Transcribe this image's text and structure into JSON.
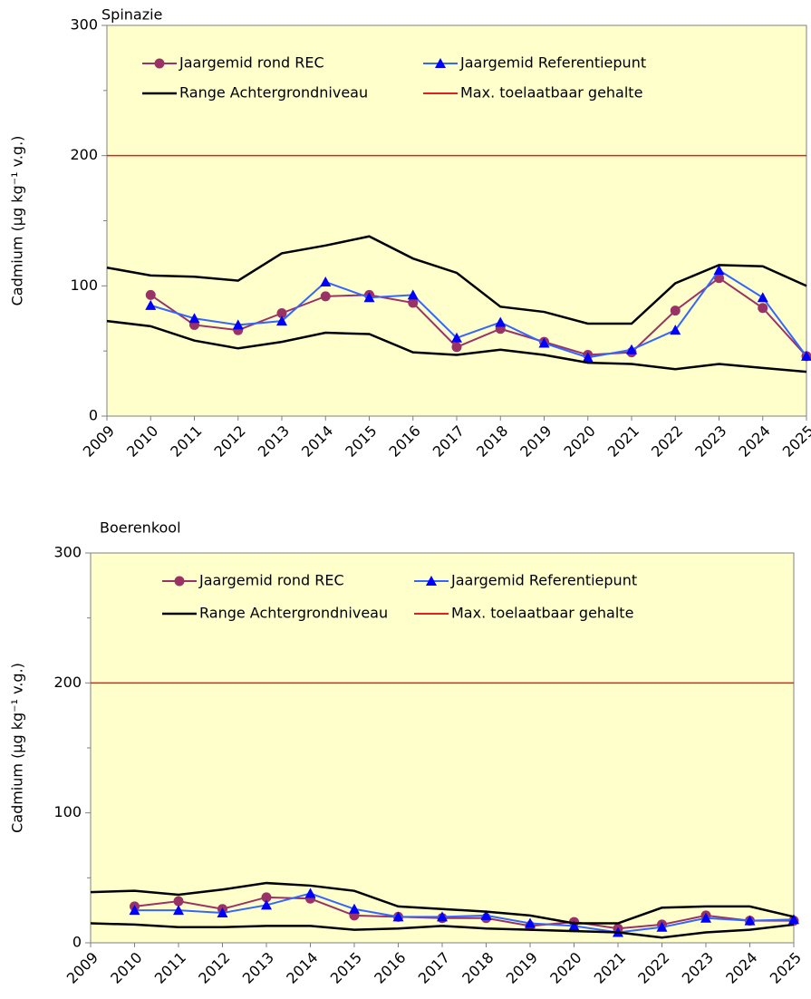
{
  "chart_data": [
    {
      "type": "line",
      "title": "Spinazie",
      "ylabel": "Cadmium (µg kg⁻¹ v.g.)",
      "x": [
        2009,
        2010,
        2011,
        2012,
        2013,
        2014,
        2015,
        2016,
        2017,
        2018,
        2019,
        2020,
        2021,
        2022,
        2023,
        2024,
        2025
      ],
      "xlim": [
        2009,
        2025
      ],
      "xticks": [
        2009,
        2010,
        2011,
        2012,
        2013,
        2014,
        2015,
        2016,
        2017,
        2018,
        2019,
        2020,
        2021,
        2022,
        2023,
        2024,
        2025
      ],
      "ylim": [
        0,
        300
      ],
      "yticks": [
        0,
        100,
        200,
        300
      ],
      "yminorticks": [
        50,
        150,
        250
      ],
      "series": [
        {
          "name": "Jaargemid rond REC",
          "color": "#993366",
          "marker": "circle",
          "values": [
            null,
            93,
            70,
            66,
            79,
            92,
            93,
            87,
            53,
            67,
            57,
            47,
            49,
            81,
            106,
            83,
            46
          ]
        },
        {
          "name": "Jaargemid Referentiepunt",
          "color": "#3366ff",
          "marker": "triangle",
          "values": [
            null,
            85,
            75,
            70,
            73,
            103,
            91,
            93,
            60,
            72,
            56,
            45,
            51,
            66,
            112,
            91,
            46
          ]
        },
        {
          "name": "Range Achtergrondniveau",
          "color": "#000000",
          "values": [
            114,
            108,
            107,
            104,
            125,
            131,
            138,
            121,
            110,
            84,
            80,
            71,
            71,
            102,
            116,
            115,
            100
          ],
          "lower_values": [
            73,
            69,
            58,
            52,
            57,
            64,
            63,
            49,
            47,
            51,
            47,
            41,
            40,
            36,
            40,
            37,
            34
          ]
        },
        {
          "name": "Max. toelaatbaar gehalte",
          "color": "#e02020",
          "value": 200
        }
      ]
    },
    {
      "type": "line",
      "title": "Boerenkool",
      "ylabel": "Cadmium (µg kg⁻¹ v.g.)",
      "x": [
        2009,
        2010,
        2011,
        2012,
        2013,
        2014,
        2015,
        2016,
        2017,
        2018,
        2019,
        2020,
        2021,
        2022,
        2023,
        2024,
        2025
      ],
      "xlim": [
        2009,
        2025
      ],
      "xticks": [
        2009,
        2010,
        2011,
        2012,
        2013,
        2014,
        2015,
        2016,
        2017,
        2018,
        2019,
        2020,
        2021,
        2022,
        2023,
        2024,
        2025
      ],
      "ylim": [
        0,
        300
      ],
      "yticks": [
        0,
        100,
        200,
        300
      ],
      "yminorticks": [
        50,
        150,
        250
      ],
      "series": [
        {
          "name": "Jaargemid rond REC",
          "color": "#993366",
          "marker": "circle",
          "values": [
            null,
            28,
            32,
            26,
            35,
            34,
            21,
            20,
            19,
            19,
            13,
            16,
            11,
            14,
            21,
            17,
            17
          ]
        },
        {
          "name": "Jaargemid Referentiepunt",
          "color": "#3366ff",
          "marker": "triangle",
          "values": [
            null,
            25,
            25,
            23,
            29,
            38,
            26,
            20,
            20,
            21,
            15,
            13,
            8,
            12,
            19,
            17,
            18
          ]
        },
        {
          "name": "Range Achtergrondniveau",
          "color": "#000000",
          "values": [
            39,
            40,
            37,
            41,
            46,
            44,
            40,
            28,
            26,
            24,
            21,
            15,
            15,
            27,
            28,
            28,
            20
          ],
          "lower_values": [
            15,
            14,
            12,
            12,
            13,
            13,
            10,
            11,
            13,
            11,
            10,
            9,
            8,
            4,
            8,
            10,
            14
          ]
        },
        {
          "name": "Max. toelaatbaar gehalte",
          "color": "#e02020",
          "value": 200
        }
      ]
    }
  ]
}
